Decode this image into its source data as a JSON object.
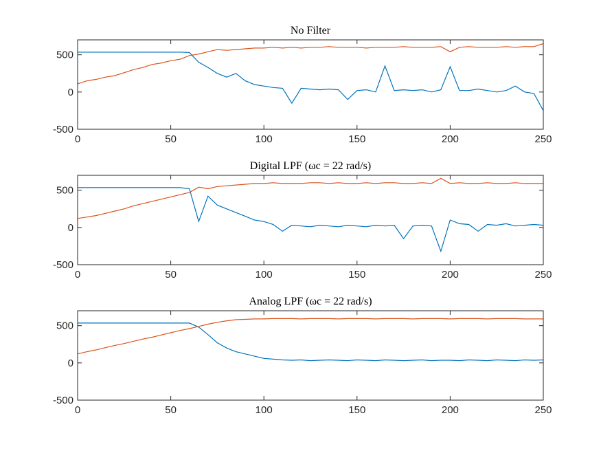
{
  "chart_data": [
    {
      "type": "line",
      "title": "No Filter",
      "x": [
        0,
        5,
        10,
        15,
        20,
        25,
        30,
        35,
        40,
        45,
        50,
        55,
        60,
        65,
        70,
        75,
        80,
        85,
        90,
        95,
        100,
        105,
        110,
        115,
        120,
        125,
        130,
        135,
        140,
        145,
        150,
        155,
        160,
        165,
        170,
        175,
        180,
        185,
        190,
        195,
        200,
        205,
        210,
        215,
        220,
        225,
        230,
        235,
        240,
        245,
        250
      ],
      "series": [
        {
          "color": "#0072BD",
          "values": [
            535,
            535,
            535,
            535,
            535,
            535,
            535,
            535,
            535,
            535,
            535,
            535,
            530,
            400,
            330,
            250,
            200,
            250,
            150,
            100,
            80,
            60,
            50,
            -150,
            50,
            40,
            30,
            40,
            30,
            -100,
            20,
            30,
            0,
            350,
            20,
            30,
            20,
            30,
            0,
            30,
            340,
            20,
            20,
            40,
            20,
            0,
            20,
            80,
            0,
            -20,
            -250
          ]
        },
        {
          "color": "#D95319",
          "values": [
            110,
            150,
            170,
            200,
            220,
            260,
            300,
            330,
            370,
            390,
            420,
            440,
            490,
            510,
            540,
            570,
            560,
            570,
            580,
            590,
            590,
            600,
            590,
            600,
            590,
            600,
            600,
            610,
            600,
            600,
            600,
            590,
            600,
            600,
            600,
            610,
            600,
            600,
            600,
            610,
            540,
            600,
            610,
            600,
            600,
            600,
            610,
            600,
            610,
            610,
            650
          ]
        }
      ],
      "xlim": [
        0,
        250
      ],
      "xticks": [
        0,
        50,
        100,
        150,
        200,
        250
      ],
      "ylim": [
        -500,
        700
      ],
      "yticks": [
        -500,
        0,
        500
      ]
    },
    {
      "type": "line",
      "title": "Digital LPF (ωc = 22 rad/s)",
      "x": [
        0,
        5,
        10,
        15,
        20,
        25,
        30,
        35,
        40,
        45,
        50,
        55,
        60,
        65,
        70,
        75,
        80,
        85,
        90,
        95,
        100,
        105,
        110,
        115,
        120,
        125,
        130,
        135,
        140,
        145,
        150,
        155,
        160,
        165,
        170,
        175,
        180,
        185,
        190,
        195,
        200,
        205,
        210,
        215,
        220,
        225,
        230,
        235,
        240,
        245,
        250
      ],
      "series": [
        {
          "color": "#0072BD",
          "values": [
            535,
            535,
            535,
            535,
            535,
            535,
            535,
            535,
            535,
            535,
            535,
            535,
            520,
            80,
            420,
            300,
            250,
            200,
            150,
            100,
            80,
            40,
            -50,
            30,
            20,
            10,
            30,
            20,
            10,
            30,
            20,
            10,
            30,
            20,
            30,
            -150,
            20,
            30,
            20,
            -320,
            100,
            50,
            40,
            -50,
            40,
            30,
            50,
            20,
            30,
            40,
            30
          ]
        },
        {
          "color": "#D95319",
          "values": [
            120,
            140,
            160,
            190,
            220,
            250,
            290,
            320,
            350,
            380,
            410,
            440,
            470,
            540,
            520,
            550,
            560,
            570,
            580,
            590,
            590,
            600,
            590,
            590,
            590,
            600,
            600,
            590,
            600,
            590,
            590,
            600,
            590,
            600,
            600,
            590,
            590,
            600,
            590,
            660,
            590,
            600,
            590,
            590,
            600,
            590,
            590,
            600,
            590,
            590,
            590
          ]
        }
      ],
      "xlim": [
        0,
        250
      ],
      "xticks": [
        0,
        50,
        100,
        150,
        200,
        250
      ],
      "ylim": [
        -500,
        700
      ],
      "yticks": [
        -500,
        0,
        500
      ]
    },
    {
      "type": "line",
      "title": "Analog LPF (ωc = 22 rad/s)",
      "x": [
        0,
        5,
        10,
        15,
        20,
        25,
        30,
        35,
        40,
        45,
        50,
        55,
        60,
        65,
        70,
        75,
        80,
        85,
        90,
        95,
        100,
        105,
        110,
        115,
        120,
        125,
        130,
        135,
        140,
        145,
        150,
        155,
        160,
        165,
        170,
        175,
        180,
        185,
        190,
        195,
        200,
        205,
        210,
        215,
        220,
        225,
        230,
        235,
        240,
        245,
        250
      ],
      "series": [
        {
          "color": "#0072BD",
          "values": [
            535,
            535,
            535,
            535,
            535,
            535,
            535,
            535,
            535,
            535,
            535,
            535,
            535,
            480,
            380,
            270,
            200,
            150,
            120,
            90,
            60,
            50,
            40,
            35,
            40,
            30,
            35,
            40,
            35,
            30,
            40,
            35,
            30,
            40,
            35,
            30,
            35,
            40,
            30,
            35,
            35,
            30,
            40,
            35,
            30,
            40,
            35,
            30,
            40,
            35,
            40
          ]
        },
        {
          "color": "#D95319",
          "values": [
            120,
            150,
            175,
            205,
            235,
            260,
            290,
            320,
            345,
            375,
            405,
            435,
            460,
            490,
            520,
            545,
            565,
            580,
            585,
            590,
            590,
            595,
            595,
            595,
            590,
            595,
            595,
            595,
            590,
            595,
            595,
            595,
            590,
            595,
            595,
            595,
            590,
            595,
            595,
            595,
            590,
            595,
            595,
            595,
            590,
            595,
            595,
            595,
            590,
            590,
            590
          ]
        }
      ],
      "xlim": [
        0,
        250
      ],
      "xticks": [
        0,
        50,
        100,
        150,
        200,
        250
      ],
      "ylim": [
        -500,
        700
      ],
      "yticks": [
        -500,
        0,
        500
      ]
    }
  ]
}
